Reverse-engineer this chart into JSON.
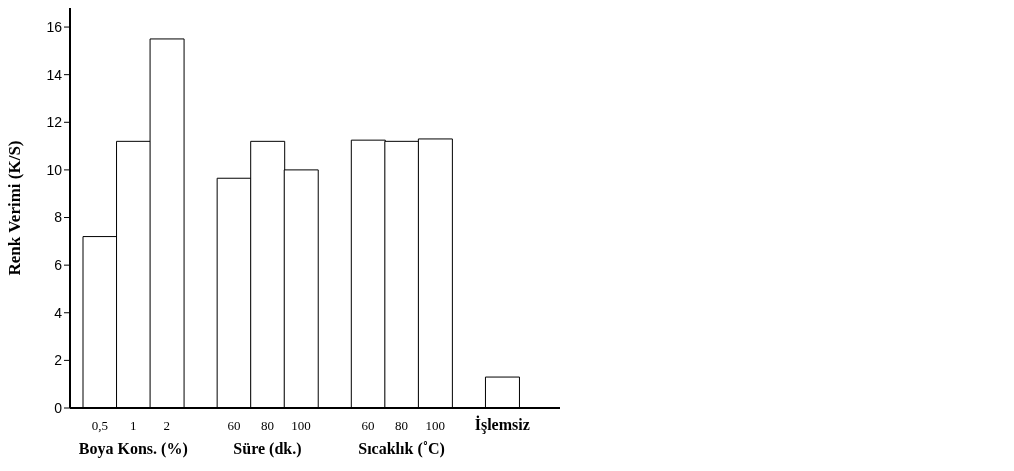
{
  "chart_data": {
    "type": "bar",
    "ylabel": "Renk Verimi (K/S)",
    "categories": [
      "0,5",
      "1",
      "2",
      null,
      "60",
      "80",
      "100",
      null,
      "60",
      "80",
      "100",
      null,
      "İşlemsiz"
    ],
    "values": [
      7.2,
      11.2,
      15.5,
      null,
      9.65,
      11.2,
      10.0,
      null,
      11.25,
      11.2,
      11.3,
      null,
      1.3
    ],
    "color": "#ffffff",
    "ylim": [
      0,
      16.8
    ],
    "yticks": [
      0,
      2,
      4,
      6,
      8,
      10,
      12,
      14,
      16
    ],
    "annotations": [
      "Boya Kons. (%)",
      "Süre (dk.)",
      "Sıcaklık (˚C)"
    ]
  }
}
